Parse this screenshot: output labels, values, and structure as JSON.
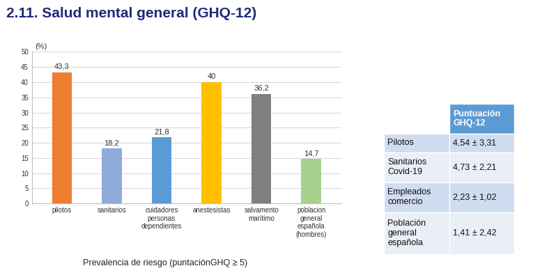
{
  "title": "2.11. Salud mental general (GHQ-12)",
  "chart_data": {
    "type": "bar",
    "y_label": "(%)",
    "x_label": "Prevalencia de riesgo (puntaciónGHQ ≥ 5)",
    "categories": [
      "pilotos",
      "sanitarios",
      "cuidadores personas dependientes",
      "anestesistas",
      "salvamento marítimo",
      "poblacion general española (hombres)"
    ],
    "values": [
      43.3,
      18.2,
      21.8,
      40,
      36.2,
      14.7
    ],
    "value_labels": [
      "43,3",
      "18,2",
      "21,8",
      "40",
      "36,2",
      "14,7"
    ],
    "colors": [
      "#ED7D31",
      "#8FAADC",
      "#5B9BD5",
      "#FFC000",
      "#7F7F7F",
      "#A9D18E"
    ],
    "ylim": [
      0,
      50
    ],
    "yticks": [
      0,
      5,
      10,
      15,
      20,
      25,
      30,
      35,
      40,
      45,
      50
    ],
    "grid": true,
    "data_labels": true
  },
  "table": {
    "header": "Puntuación GHQ-12",
    "rows": [
      [
        "Pilotos",
        "4,54 ± 3,31"
      ],
      [
        "Sanitarios Covid-19",
        "4,73 ± 2,21"
      ],
      [
        "Empleados comercio",
        "2,23 ± 1,02"
      ],
      [
        "Población general española",
        "1,41 ± 2,42"
      ]
    ]
  }
}
